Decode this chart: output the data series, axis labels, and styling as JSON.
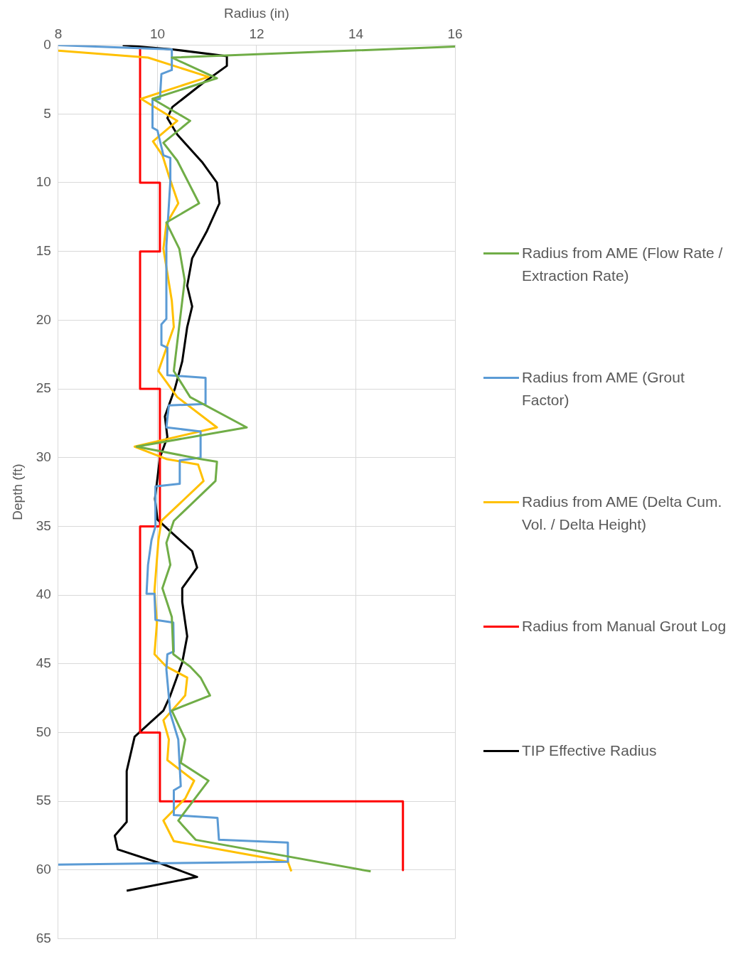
{
  "chart_data": {
    "type": "line",
    "xlabel": "Radius (in)",
    "ylabel": "Depth (ft)",
    "xlim": [
      8,
      16
    ],
    "xticks": [
      8,
      10,
      12,
      14,
      16
    ],
    "ylim": [
      65,
      0
    ],
    "yticks": [
      0,
      5,
      10,
      15,
      20,
      25,
      30,
      35,
      40,
      45,
      50,
      55,
      60,
      65
    ],
    "grid": true,
    "legend": "right",
    "marker": "none",
    "line_style": "solid",
    "series": [
      {
        "name": "Radius from AME (Flow Rate / Extraction Rate)",
        "color": "#70ad47",
        "x": [
          16,
          10.29,
          11.2,
          9.9,
          10.66,
          10.12,
          10.4,
          10.84,
          10.18,
          10.44,
          10.55,
          10.33,
          10.66,
          11.8,
          9.58,
          10.87,
          11.2,
          11.17,
          10.33,
          10.18,
          10.26,
          10.1,
          10.29,
          10.32,
          10.66,
          10.87,
          11.06,
          10.29,
          10.56,
          10.47,
          11.03,
          10.42,
          10.77,
          14.3
        ],
        "values": [
          0.1,
          0.9,
          2.4,
          3.9,
          5.5,
          7.1,
          8.4,
          11.5,
          12.9,
          14.8,
          17.1,
          23.7,
          25.6,
          27.8,
          29.2,
          30.1,
          30.3,
          31.7,
          34.6,
          36.2,
          37.8,
          39.5,
          41.6,
          44.3,
          45.2,
          46,
          47.3,
          48.4,
          50.5,
          52.2,
          53.5,
          56.4,
          57.8,
          60.1
        ]
      },
      {
        "name": "Radius from AME (Grout Factor)",
        "color": "#5b9bd5",
        "x": [
          8,
          10.29,
          10.29,
          10.08,
          10.05,
          9.9,
          9.9,
          10.0,
          10.12,
          10.26,
          10.26,
          10.18,
          10.18,
          10.08,
          10.08,
          10.2,
          10.2,
          10.97,
          10.97,
          10.23,
          10.18,
          10.87,
          10.87,
          10.45,
          10.45,
          9.96,
          9.96,
          9.88,
          9.81,
          9.78,
          9.94,
          9.96,
          10.32,
          10.33,
          10.2,
          10.18,
          10.26,
          10.42,
          10.47,
          10.33,
          10.33,
          11.21,
          11.24,
          12.63,
          12.63,
          8
        ],
        "values": [
          0,
          0.3,
          1.8,
          2.1,
          3.9,
          4,
          6,
          6.2,
          8,
          8.2,
          9.9,
          14.6,
          19.9,
          20.3,
          21.8,
          22,
          24,
          24.2,
          26.1,
          26.2,
          27.8,
          28.1,
          30,
          30.2,
          31.9,
          32.1,
          35,
          36,
          37.8,
          39.9,
          39.9,
          41.8,
          42,
          44.1,
          44.3,
          45.4,
          48.6,
          50.5,
          53.9,
          54.2,
          56,
          56.2,
          57.8,
          58,
          59.4,
          59.6
        ]
      },
      {
        "name": "Radius from AME (Delta Cum. Vol. / Delta Height)",
        "color": "#ffc000",
        "x": [
          8,
          9.81,
          11.03,
          9.67,
          10.4,
          9.91,
          10.1,
          10.23,
          10.42,
          10.18,
          10.12,
          10.29,
          10.33,
          10.02,
          10.4,
          11.2,
          9.54,
          10.18,
          10.82,
          10.93,
          10.08,
          10.02,
          9.94,
          9.99,
          9.94,
          10.18,
          10.6,
          10.56,
          10.12,
          10.23,
          10.2,
          10.74,
          10.56,
          10.12,
          10.33,
          12.63,
          12.7
        ],
        "values": [
          0.4,
          0.9,
          2.3,
          3.9,
          5.5,
          7,
          8,
          9.5,
          11.5,
          13,
          14.8,
          18.6,
          20.5,
          23.7,
          25.6,
          27.8,
          29.2,
          30.1,
          30.5,
          31.7,
          34.6,
          36,
          39.7,
          42,
          44.3,
          45.2,
          46,
          47.3,
          49.1,
          50.5,
          52,
          53.5,
          54.8,
          56.4,
          57.9,
          59.4,
          60.1
        ]
      },
      {
        "name": "Radius from Manual Grout Log",
        "color": "#ff0000",
        "x": [
          9.65,
          9.65,
          10.05,
          10.05,
          9.65,
          9.65,
          10.05,
          10.05,
          9.65,
          9.65,
          10.05,
          10.05,
          14.95,
          14.95
        ],
        "values": [
          0.3,
          10,
          10,
          15,
          15,
          25,
          25,
          35,
          35,
          50,
          50,
          55,
          55,
          60
        ]
      },
      {
        "name": "TIP Effective Radius",
        "color": "#000000",
        "x": [
          9.3,
          10.3,
          11.4,
          11.4,
          10.9,
          10.3,
          10.2,
          10.4,
          10.9,
          11.2,
          11.25,
          11.0,
          10.7,
          10.6,
          10.7,
          10.6,
          10.5,
          10.35,
          10.15,
          10.2,
          10.05,
          9.95,
          10.0,
          10.3,
          10.7,
          10.8,
          10.5,
          10.5,
          10.6,
          10.5,
          10.26,
          10.12,
          9.54,
          9.38,
          9.38,
          9.14,
          9.2,
          10.05,
          10.8,
          9.38
        ],
        "values": [
          0,
          0.3,
          0.8,
          1.5,
          2.8,
          4.5,
          5.3,
          6.5,
          8.5,
          10,
          11.5,
          13.5,
          15.5,
          17.5,
          19,
          20.5,
          23,
          25,
          27,
          28.5,
          30,
          33,
          34.5,
          35.5,
          36.8,
          38,
          39.5,
          40.5,
          43,
          44.9,
          47.3,
          48.4,
          50.3,
          52.8,
          56.5,
          57.5,
          58.5,
          59.5,
          60.5,
          61.5
        ]
      }
    ]
  }
}
